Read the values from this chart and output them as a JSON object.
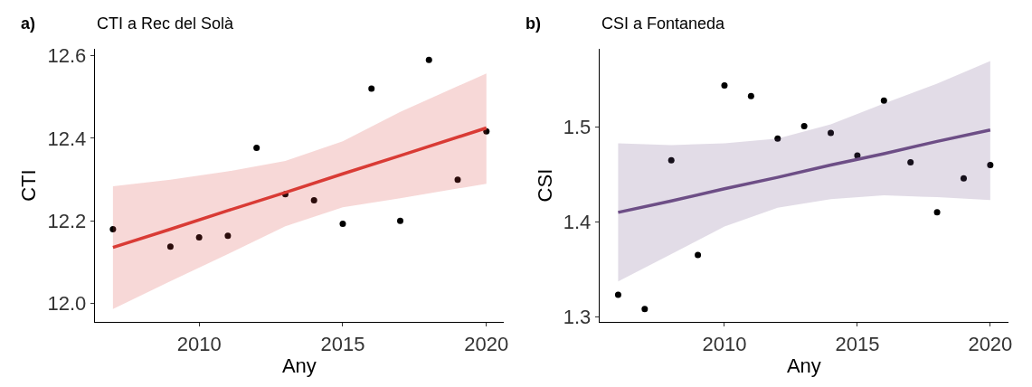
{
  "chart_data": [
    {
      "type": "scatter",
      "title": "CTI a Rec del Solà",
      "annotations": [
        "a)"
      ],
      "xlabel": "Any",
      "ylabel": "CTI",
      "xlim": [
        2006.37,
        2020.6
      ],
      "xticks": [
        2010,
        2015,
        2020
      ],
      "ylim": [
        11.955,
        12.617
      ],
      "yticks": [
        {
          "value": 12.0,
          "label": "12.0"
        },
        12.2,
        12.4,
        12.6
      ],
      "series": [
        {
          "marker": "circle",
          "color": "#000000",
          "x": [
            2007,
            2009,
            2010,
            2011,
            2012,
            2013,
            2014,
            2015,
            2016,
            2017,
            2018,
            2019,
            2020
          ],
          "values": [
            12.18,
            12.138,
            12.16,
            12.164,
            12.377,
            12.265,
            12.25,
            12.193,
            12.52,
            12.2,
            12.59,
            12.3,
            12.417
          ]
        },
        {
          "type": "line",
          "marker": "none",
          "line_style": "solid",
          "color": "#d93b35",
          "x": [
            2007,
            2009,
            2011,
            2013,
            2015,
            2017,
            2020
          ],
          "values": [
            12.136,
            12.18,
            12.225,
            12.269,
            12.314,
            12.358,
            12.425
          ],
          "lower": [
            11.987,
            12.054,
            12.12,
            12.187,
            12.233,
            12.255,
            12.29
          ],
          "upper": [
            12.284,
            12.3,
            12.32,
            12.345,
            12.393,
            12.464,
            12.557
          ]
        }
      ]
    },
    {
      "type": "scatter",
      "title": "CSI a Fontaneda",
      "annotations": [
        "b)"
      ],
      "xlabel": "Any",
      "ylabel": "CSI",
      "xlim": [
        2005.3,
        2020.68
      ],
      "xticks": [
        2010,
        2015,
        2020
      ],
      "ylim": [
        1.294,
        1.583
      ],
      "yticks": [
        1.3,
        1.4,
        1.5
      ],
      "series": [
        {
          "marker": "circle",
          "color": "#000000",
          "x": [
            2006,
            2007,
            2008,
            2009,
            2010,
            2011,
            2012,
            2013,
            2014,
            2015,
            2016,
            2017,
            2018,
            2019,
            2020
          ],
          "values": [
            1.323,
            1.308,
            1.465,
            1.365,
            1.544,
            1.533,
            1.488,
            1.501,
            1.494,
            1.47,
            1.528,
            1.463,
            1.41,
            1.446,
            1.46
          ]
        },
        {
          "type": "line",
          "marker": "none",
          "line_style": "solid",
          "color": "#6d4e86",
          "x": [
            2006,
            2008,
            2010,
            2012,
            2014,
            2016,
            2018,
            2020
          ],
          "values": [
            1.41,
            1.422,
            1.435,
            1.447,
            1.46,
            1.472,
            1.485,
            1.497
          ],
          "lower": [
            1.337,
            1.366,
            1.395,
            1.415,
            1.424,
            1.428,
            1.426,
            1.423
          ],
          "upper": [
            1.483,
            1.481,
            1.483,
            1.488,
            1.503,
            1.525,
            1.546,
            1.57
          ]
        }
      ]
    }
  ]
}
